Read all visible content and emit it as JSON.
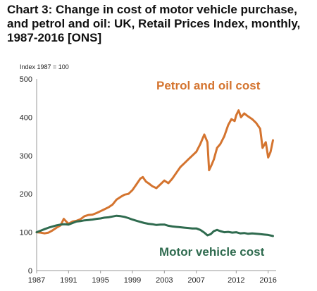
{
  "chart_data": {
    "type": "line",
    "title": "Chart 3: Change in cost of motor vehicle purchase, and petrol and oil: UK, Retail Prices Index, monthly, 1987-2016 [ONS]",
    "unit_label": "Index 1987 = 100",
    "ylim": [
      0,
      500
    ],
    "y_ticks": [
      0,
      100,
      200,
      300,
      400,
      500
    ],
    "xlim": [
      1987,
      2017
    ],
    "x_ticks": [
      1987,
      1991,
      1995,
      1999,
      2003,
      2007,
      2012,
      2016
    ],
    "x_tick_labels": [
      "1987",
      "1991",
      "1995",
      "1999",
      "2003",
      "2007",
      "2012",
      "2016"
    ],
    "grid": false,
    "colors": {
      "petrol": "#d4742f",
      "motor": "#2f6b4f",
      "axis": "#999999"
    },
    "series": [
      {
        "name": "Petrol and oil cost",
        "x": [
          1987.0,
          1987.5,
          1988.0,
          1988.5,
          1989.0,
          1989.5,
          1990.0,
          1990.4,
          1990.8,
          1991.0,
          1991.5,
          1992.0,
          1992.5,
          1993.0,
          1993.5,
          1994.0,
          1994.5,
          1995.0,
          1995.5,
          1996.0,
          1996.5,
          1997.0,
          1997.5,
          1998.0,
          1998.5,
          1999.0,
          1999.5,
          2000.0,
          2000.3,
          2000.7,
          2001.0,
          2001.5,
          2002.0,
          2002.5,
          2003.0,
          2003.5,
          2004.0,
          2004.5,
          2005.0,
          2005.5,
          2006.0,
          2006.5,
          2007.0,
          2007.5,
          2008.0,
          2008.4,
          2008.6,
          2008.9,
          2009.2,
          2009.6,
          2010.0,
          2010.5,
          2011.0,
          2011.4,
          2011.8,
          2012.0,
          2012.3,
          2012.6,
          2013.0,
          2013.5,
          2014.0,
          2014.5,
          2015.0,
          2015.3,
          2015.7,
          2016.0,
          2016.3,
          2016.6
        ],
        "values": [
          100,
          99,
          97,
          99,
          105,
          112,
          118,
          135,
          126,
          122,
          128,
          130,
          134,
          142,
          145,
          146,
          150,
          155,
          160,
          165,
          172,
          185,
          192,
          198,
          200,
          210,
          225,
          240,
          244,
          232,
          228,
          220,
          215,
          225,
          235,
          228,
          240,
          255,
          270,
          280,
          290,
          300,
          310,
          330,
          355,
          335,
          262,
          275,
          290,
          320,
          330,
          350,
          380,
          395,
          390,
          405,
          418,
          400,
          410,
          402,
          395,
          385,
          370,
          320,
          335,
          295,
          310,
          340
        ]
      },
      {
        "name": "Motor vehicle cost",
        "x": [
          1987.0,
          1987.5,
          1988.0,
          1988.5,
          1989.0,
          1989.5,
          1990.0,
          1990.5,
          1991.0,
          1991.5,
          1992.0,
          1992.5,
          1993.0,
          1993.5,
          1994.0,
          1994.5,
          1995.0,
          1995.5,
          1996.0,
          1996.5,
          1997.0,
          1997.5,
          1998.0,
          1998.5,
          1999.0,
          1999.5,
          2000.0,
          2000.5,
          2001.0,
          2001.5,
          2002.0,
          2002.5,
          2003.0,
          2003.5,
          2004.0,
          2004.5,
          2005.0,
          2005.5,
          2006.0,
          2006.5,
          2007.0,
          2007.5,
          2008.0,
          2008.4,
          2008.8,
          2009.2,
          2009.6,
          2010.0,
          2010.5,
          2011.0,
          2011.5,
          2012.0,
          2012.5,
          2013.0,
          2013.5,
          2014.0,
          2014.5,
          2015.0,
          2015.5,
          2016.0,
          2016.6
        ],
        "values": [
          100,
          104,
          108,
          112,
          115,
          118,
          120,
          121,
          120,
          124,
          128,
          129,
          131,
          132,
          133,
          135,
          136,
          138,
          139,
          141,
          143,
          142,
          140,
          137,
          133,
          130,
          127,
          124,
          122,
          121,
          119,
          120,
          120,
          117,
          115,
          114,
          113,
          112,
          111,
          110,
          110,
          106,
          99,
          92,
          95,
          103,
          106,
          103,
          100,
          101,
          99,
          100,
          97,
          98,
          96,
          97,
          96,
          95,
          94,
          93,
          90
        ]
      }
    ]
  }
}
